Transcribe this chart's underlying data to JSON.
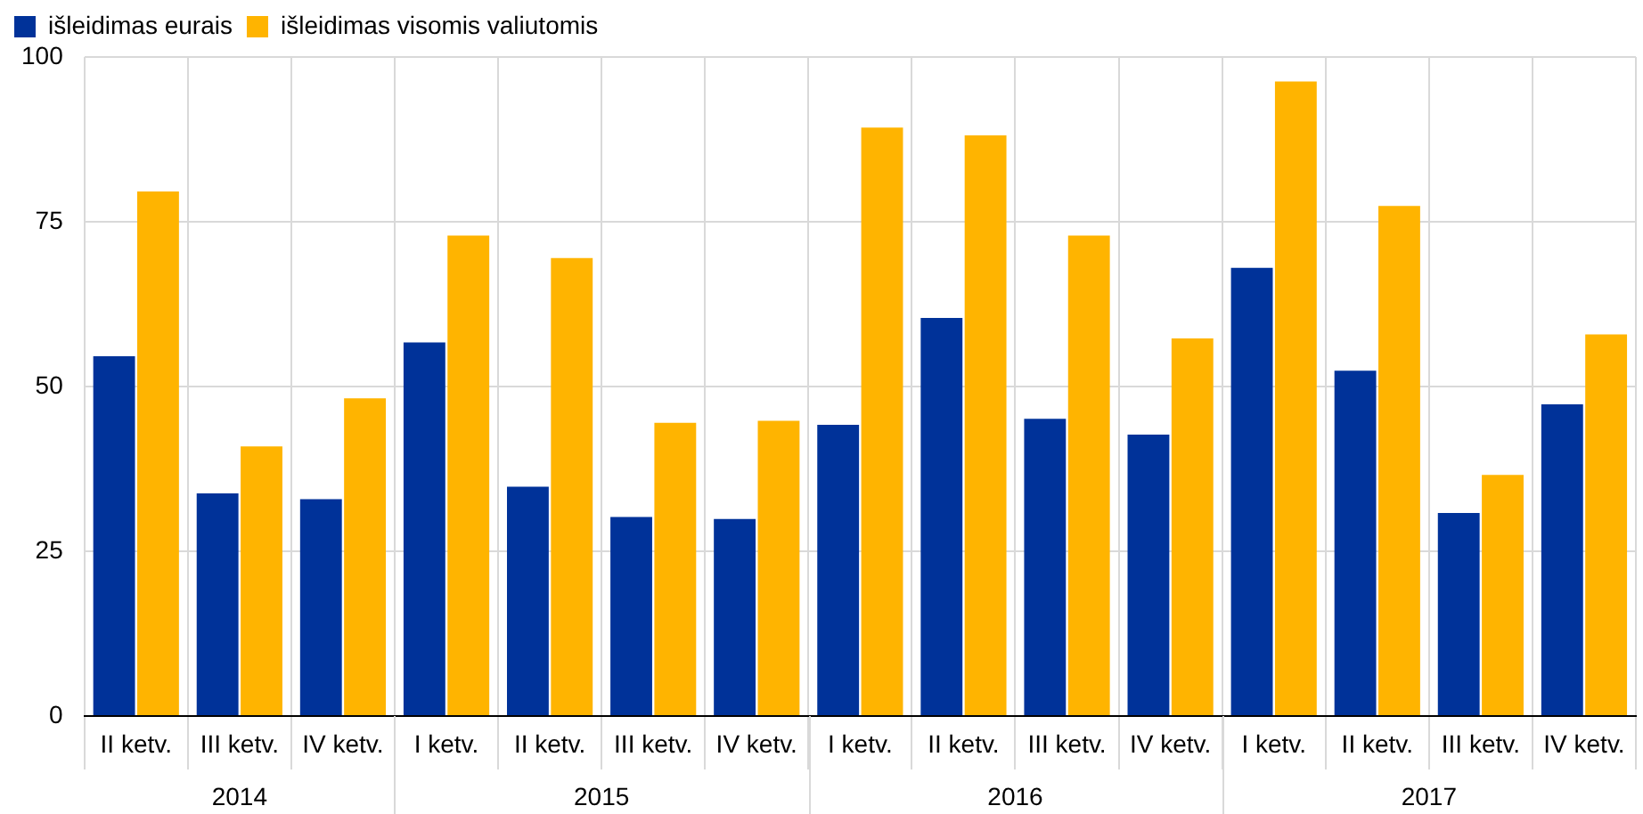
{
  "chart_data": {
    "type": "bar",
    "categories": [
      "II ketv.",
      "III ketv.",
      "IV ketv.",
      "I ketv.",
      "II ketv.",
      "III ketv.",
      "IV ketv.",
      "I ketv.",
      "II ketv.",
      "III ketv.",
      "IV ketv.",
      "I ketv.",
      "II ketv.",
      "III ketv.",
      "IV ketv."
    ],
    "series": [
      {
        "name": "išleidimas eurais",
        "color": "#003299",
        "values": [
          54.6,
          33.8,
          32.9,
          56.7,
          34.8,
          30.2,
          29.9,
          44.2,
          60.4,
          45.1,
          42.7,
          68.0,
          52.4,
          30.8,
          47.3
        ]
      },
      {
        "name": "išleidimas visomis valiutomis",
        "color": "#ffb400",
        "values": [
          79.6,
          40.9,
          48.2,
          72.9,
          69.5,
          44.5,
          44.8,
          89.3,
          88.1,
          72.9,
          57.3,
          96.3,
          77.4,
          36.6,
          57.9
        ]
      }
    ],
    "ylim": [
      0,
      100
    ],
    "yticks": [
      0,
      25,
      50,
      75,
      100
    ],
    "grid": true,
    "legend": "top left",
    "annotations": [
      "2014",
      "2015",
      "2016",
      "2017"
    ]
  }
}
